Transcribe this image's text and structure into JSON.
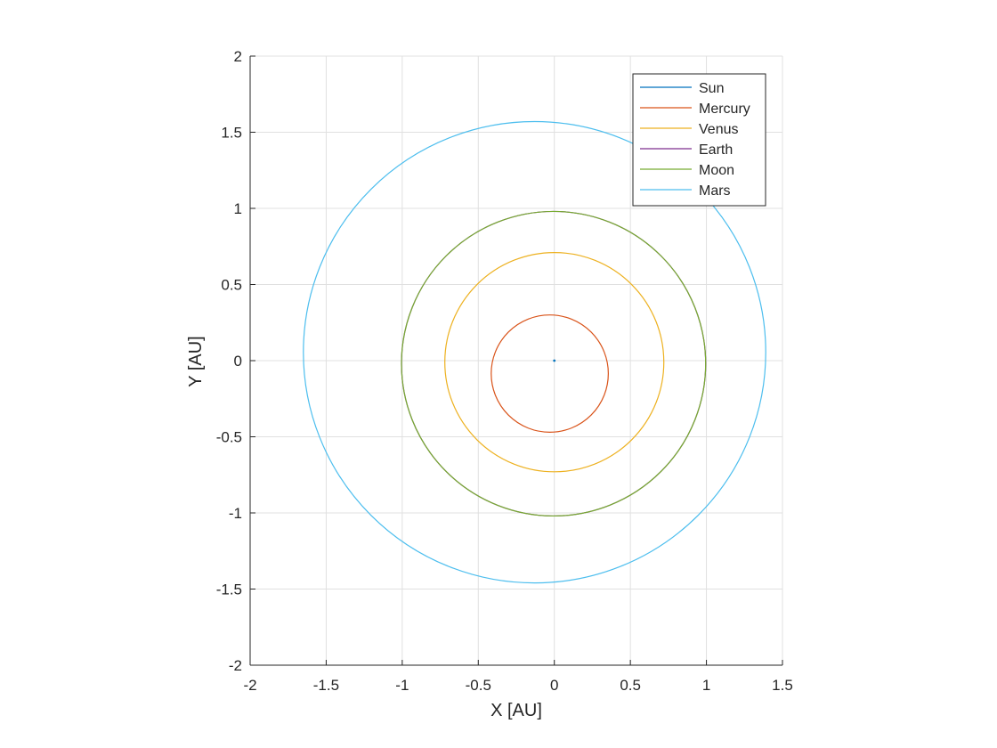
{
  "chart_data": {
    "type": "line",
    "title": "",
    "xlabel": "X [AU]",
    "ylabel": "Y [AU]",
    "xlim": [
      -2,
      1.5
    ],
    "ylim": [
      -2,
      2
    ],
    "xticks": [
      "-2",
      "-1.5",
      "-1",
      "-0.5",
      "0",
      "0.5",
      "1",
      "1.5"
    ],
    "yticks": [
      "-2",
      "-1.5",
      "-1",
      "-0.5",
      "0",
      "0.5",
      "1",
      "1.5",
      "2"
    ],
    "grid": true,
    "legend_position": "top-right",
    "series": [
      {
        "name": "Sun",
        "color": "#0072BD",
        "cx": 0,
        "cy": 0,
        "rx": 0.004,
        "ry": 0.004
      },
      {
        "name": "Mercury",
        "color": "#D95319",
        "cx": -0.03,
        "cy": -0.085,
        "rx": 0.385,
        "ry": 0.385
      },
      {
        "name": "Venus",
        "color": "#EDB120",
        "cx": 0.0,
        "cy": -0.01,
        "rx": 0.72,
        "ry": 0.72
      },
      {
        "name": "Earth",
        "color": "#7E2F8E",
        "cx": -0.005,
        "cy": -0.02,
        "rx": 1.0,
        "ry": 1.0
      },
      {
        "name": "Moon",
        "color": "#77AC30",
        "cx": -0.005,
        "cy": -0.02,
        "rx": 1.0,
        "ry": 1.0
      },
      {
        "name": "Mars",
        "color": "#4DBEEE",
        "cx": -0.13,
        "cy": 0.055,
        "rx": 1.52,
        "ry": 1.515
      }
    ]
  }
}
